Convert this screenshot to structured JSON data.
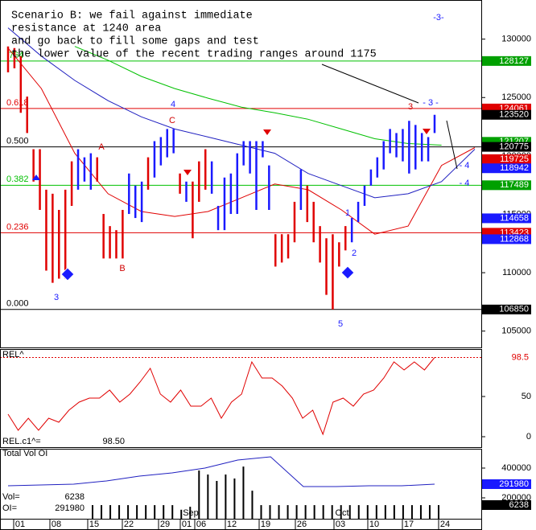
{
  "chart_data": [
    {
      "type": "price",
      "annotation_lines": [
        "Scenario B: we fail against immediate",
        "resistance at 1240 area",
        "and go back to fill some gaps and test",
        "the lower value of the recent trading ranges around 1175"
      ],
      "wave_labels": [
        {
          "text": "-3-",
          "color": "#1a1aff"
        },
        {
          "text": "- 3 -",
          "color": "#1a1aff"
        },
        {
          "text": "3",
          "color": "#1a1aff"
        },
        {
          "text": "3",
          "color": "#d00000"
        },
        {
          "text": "4",
          "color": "#1a1aff"
        },
        {
          "text": "C",
          "color": "#d00000"
        },
        {
          "text": "A",
          "color": "#d00000"
        },
        {
          "text": "B",
          "color": "#d00000"
        },
        {
          "text": "5",
          "color": "#1a1aff"
        },
        {
          "text": "1",
          "color": "#1a1aff"
        },
        {
          "text": "2",
          "color": "#1a1aff"
        },
        {
          "text": "- 4",
          "color": "#1a1aff"
        },
        {
          "text": "- 4",
          "color": "#1a1aff"
        }
      ],
      "ylim": [
        103600,
        132800
      ],
      "yticks": [
        105000,
        110000,
        115000,
        120000,
        125000,
        130000
      ],
      "high": [
        129374,
        129236,
        128543,
        125078,
        120573,
        120573,
        117108,
        116762,
        115376,
        117108,
        119534,
        120573,
        119880,
        120227,
        119880,
        115029,
        113990,
        113643,
        115376,
        118494,
        117455,
        117801,
        119880,
        121266,
        121613,
        122306,
        122306,
        118494,
        117801,
        117801,
        119534,
        120573,
        119534,
        115722,
        118148,
        118494,
        120227,
        121266,
        121266,
        121266,
        121266,
        119187,
        113297,
        113297,
        113297,
        116069,
        118841,
        117455,
        116069,
        113990,
        112950,
        113297,
        112604,
        113990,
        114683,
        116069,
        117455,
        118841,
        119880,
        121266,
        122306,
        121959,
        122306,
        123000,
        122652,
        121959,
        121613,
        123520
      ],
      "low": [
        127157,
        127503,
        123692,
        121959,
        117801,
        115376,
        110178,
        109139,
        109485,
        109485,
        115722,
        117108,
        117801,
        117108,
        117801,
        111218,
        111218,
        111218,
        111218,
        115029,
        114683,
        114336,
        117108,
        118148,
        119187,
        119880,
        120227,
        116762,
        116069,
        112950,
        116069,
        117108,
        116762,
        113643,
        113643,
        115029,
        115029,
        119187,
        118494,
        115376,
        119880,
        115376,
        110525,
        110871,
        111218,
        112604,
        115376,
        114336,
        112604,
        110871,
        108099,
        106850,
        110525,
        111911,
        112604,
        114336,
        115722,
        117455,
        118148,
        118841,
        120227,
        119880,
        119534,
        118494,
        118841,
        119534,
        119534,
        121959
      ],
      "colors": [
        "red",
        "red",
        "red",
        "red",
        "red",
        "red",
        "red",
        "red",
        "red",
        "red",
        "red",
        "blue",
        "blue",
        "blue",
        "red",
        "red",
        "red",
        "red",
        "red",
        "blue",
        "blue",
        "blue",
        "red",
        "blue",
        "blue",
        "blue",
        "blue",
        "red",
        "blue",
        "red",
        "red",
        "red",
        "blue",
        "blue",
        "blue",
        "blue",
        "blue",
        "blue",
        "blue",
        "blue",
        "blue",
        "blue",
        "red",
        "red",
        "red",
        "red",
        "blue",
        "red",
        "red",
        "red",
        "red",
        "red",
        "red",
        "red",
        "blue",
        "blue",
        "blue",
        "blue",
        "blue",
        "blue",
        "blue",
        "blue",
        "blue",
        "blue",
        "blue",
        "blue",
        "blue",
        "blue"
      ],
      "lines": [
        {
          "color": "#e00000",
          "values": [
            129236,
            125771,
            120227,
            116762,
            115237,
            114821,
            115237,
            116415,
            117593,
            117108,
            115376,
            113297,
            113990,
            119187,
            120712
          ]
        },
        {
          "color": "#2020c0",
          "values": [
            130968,
            128543,
            126464,
            124731,
            123345,
            122306,
            121613,
            120920,
            120227,
            118494,
            117455,
            116415,
            116762,
            117801,
            120573
          ]
        },
        {
          "color": "#00c000",
          "values": [
            null,
            null,
            129374,
            128196,
            126810,
            125771,
            124939,
            124177,
            123692,
            123137,
            122306,
            121474,
            121058,
            120920,
            null
          ]
        }
      ],
      "fib_levels": [
        {
          "label": ".764",
          "value": 128127,
          "color": "#00c000"
        },
        {
          "label": "0.618",
          "value": 124061,
          "color": "#e00000"
        },
        {
          "label": "0.500",
          "value": 120775,
          "color": "#000000"
        },
        {
          "label": "0.382",
          "value": 117489,
          "color": "#00c000"
        },
        {
          "label": "0.236",
          "value": 113423,
          "color": "#e00000"
        },
        {
          "label": "0.000",
          "value": 106850,
          "color": "#000000"
        }
      ],
      "price_tags": [
        {
          "value": 128127,
          "color": "#00a000"
        },
        {
          "value": 124061,
          "color": "#e00000"
        },
        {
          "value": 123520,
          "color": "#000000"
        },
        {
          "value": 121207,
          "color": "#00a000"
        },
        {
          "value": 120775,
          "color": "#000000"
        },
        {
          "value": 119725,
          "color": "#e00000"
        },
        {
          "value": 118942,
          "color": "#1a1aff"
        },
        {
          "value": 117489,
          "color": "#00a000"
        },
        {
          "value": 114658,
          "color": "#1a1aff"
        },
        {
          "value": 113423,
          "color": "#e00000"
        },
        {
          "value": 112868,
          "color": "#1a1aff"
        },
        {
          "value": 106850,
          "color": "#000000"
        }
      ]
    },
    {
      "type": "line",
      "title": "REL^",
      "legend": "REL.c1^=",
      "last_label": "98.50",
      "tag": 98.5,
      "color": "#e00000",
      "ylim": [
        -12,
        110
      ],
      "yticks": [
        0,
        50
      ],
      "values": [
        28,
        8,
        23,
        8,
        23,
        18,
        33,
        43,
        48,
        48,
        58,
        43,
        53,
        68,
        85,
        53,
        43,
        58,
        38,
        38,
        48,
        23,
        43,
        53,
        93,
        73,
        73,
        63,
        48,
        23,
        33,
        3,
        43,
        48,
        38,
        53,
        58,
        73,
        93,
        83,
        93,
        83,
        98.5
      ]
    },
    {
      "type": "volume",
      "title": "Total Vol OI",
      "vol_legend": "Vol=",
      "vol_last": 6238,
      "oi_legend": "OI=",
      "oi_last": 291980,
      "ylim": [
        59500,
        535100
      ],
      "yticks": [
        200000,
        400000
      ],
      "oi": {
        "color": "#2020c0",
        "values": [
          281000,
          286500,
          292000,
          313500,
          346000,
          367600,
          400000,
          454000,
          475700,
          275700,
          275700,
          281000,
          281000,
          291980
        ]
      },
      "volume": [
        151000,
        151000,
        151000,
        151000,
        151000,
        151000,
        151000,
        151000,
        151000,
        151000,
        120000,
        140000,
        383800,
        356700,
        313500,
        356700,
        330000,
        410000,
        248000,
        151000,
        151000,
        151000,
        151000,
        151000,
        151000,
        151000,
        151000,
        151000,
        151000,
        151000,
        151000,
        151000,
        151000,
        151000,
        151000,
        151000,
        151000,
        151000,
        151000,
        151000
      ],
      "x_labels": [
        "01",
        "08",
        "15",
        "22",
        "29",
        "01",
        "06",
        "12",
        "19",
        "26",
        "03",
        "10",
        "17",
        "24"
      ],
      "months": [
        "Sep",
        "Oct"
      ]
    }
  ]
}
